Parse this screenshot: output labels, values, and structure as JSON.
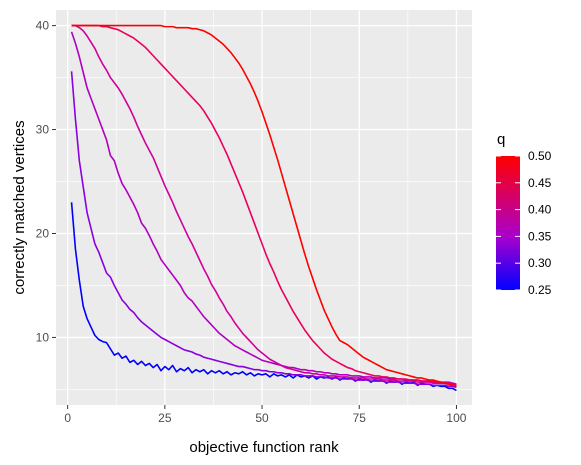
{
  "chart_data": {
    "type": "line",
    "xlabel": "objective function rank",
    "ylabel": "correctly matched vertices",
    "xlim": [
      -3,
      104
    ],
    "ylim": [
      3.5,
      41.5
    ],
    "x_ticks": [
      0,
      25,
      50,
      75,
      100
    ],
    "y_ticks": [
      10,
      20,
      30,
      40
    ],
    "x_minor_ticks": [
      12.5,
      37.5,
      62.5,
      87.5
    ],
    "y_minor_ticks": [
      5,
      15,
      25,
      35
    ],
    "grid": true,
    "background": "#EBEBEB",
    "legend": {
      "title": "q",
      "position": "right",
      "labels": [
        "0.50",
        "0.45",
        "0.40",
        "0.35",
        "0.30",
        "0.25"
      ],
      "values": [
        0.5,
        0.45,
        0.4,
        0.35,
        0.3,
        0.25
      ],
      "range": [
        0.25,
        0.5
      ],
      "color_low": "#0000FF",
      "color_mid": "#AA00CC",
      "color_high": "#FF0000"
    },
    "series": [
      {
        "q": 0.25,
        "color": "#0000FF",
        "values": [
          23,
          18.5,
          15.5,
          13,
          11.8,
          11,
          10.2,
          9.8,
          9.6,
          9.5,
          8.9,
          8.3,
          8.5,
          8,
          8.2,
          7.6,
          7.8,
          7.4,
          7.7,
          7.3,
          7.5,
          7.1,
          7.4,
          6.8,
          7.2,
          6.9,
          7.3,
          6.7,
          7,
          6.8,
          7.1,
          6.6,
          6.9,
          6.7,
          6.9,
          6.5,
          6.8,
          6.6,
          6.8,
          6.5,
          6.7,
          6.4,
          6.6,
          6.5,
          6.7,
          6.4,
          6.6,
          6.3,
          6.5,
          6.4,
          6.5,
          6.2,
          6.5,
          6.3,
          6.4,
          6.2,
          6.4,
          6.1,
          6.4,
          6.2,
          6.3,
          6.1,
          6.3,
          6,
          6.2,
          6.1,
          6.2,
          6,
          6.2,
          5.9,
          6.1,
          6,
          6.1,
          5.8,
          6,
          5.9,
          6,
          5.7,
          5.9,
          5.8,
          5.9,
          5.6,
          5.8,
          5.7,
          5.8,
          5.5,
          5.7,
          5.6,
          5.7,
          5.4,
          5.6,
          5.5,
          5.5,
          5.3,
          5.4,
          5.3,
          5.3,
          5.1,
          5.1,
          4.9
        ]
      },
      {
        "q": 0.3,
        "color": "#8A00E0",
        "values": [
          35.6,
          31,
          27,
          24.5,
          22,
          20.5,
          19,
          18.2,
          17.2,
          16.2,
          15.8,
          15,
          14.3,
          13.6,
          13.2,
          12.7,
          12.4,
          11.9,
          11.5,
          11.2,
          10.9,
          10.6,
          10.3,
          10,
          9.8,
          9.6,
          9.4,
          9.2,
          9,
          8.8,
          8.7,
          8.6,
          8.4,
          8.3,
          8.1,
          8,
          7.9,
          7.8,
          7.7,
          7.6,
          7.5,
          7.4,
          7.3,
          7.2,
          7.2,
          7.1,
          7,
          6.9,
          6.9,
          6.8,
          6.8,
          6.7,
          6.7,
          6.6,
          6.6,
          6.5,
          6.5,
          6.4,
          6.4,
          6.4,
          6.3,
          6.3,
          6.3,
          6.2,
          6.2,
          6.2,
          6.1,
          6.1,
          6.1,
          6,
          6,
          6,
          6,
          5.9,
          5.9,
          5.9,
          5.9,
          5.8,
          5.8,
          5.8,
          5.8,
          5.7,
          5.7,
          5.7,
          5.7,
          5.6,
          5.6,
          5.6,
          5.6,
          5.5,
          5.5,
          5.5,
          5.5,
          5.4,
          5.4,
          5.4,
          5.4,
          5.3,
          5.3,
          5.2
        ]
      },
      {
        "q": 0.35,
        "color": "#B000C0",
        "values": [
          39.4,
          38.3,
          37,
          35.5,
          34,
          33,
          32,
          31,
          30,
          29,
          27.5,
          27,
          25.8,
          24.8,
          24.2,
          23.5,
          22.8,
          22,
          21,
          20.5,
          19.8,
          19,
          18.3,
          17.5,
          17,
          16.5,
          16,
          15.5,
          15,
          14.3,
          13.8,
          13.5,
          13,
          12.5,
          12,
          11.6,
          11.2,
          10.8,
          10.4,
          10.1,
          9.8,
          9.5,
          9.2,
          9,
          8.8,
          8.6,
          8.4,
          8.2,
          8,
          7.8,
          7.7,
          7.6,
          7.5,
          7.4,
          7.3,
          7.2,
          7.1,
          7.1,
          7,
          6.9,
          6.9,
          6.8,
          6.8,
          6.7,
          6.7,
          6.6,
          6.6,
          6.5,
          6.5,
          6.4,
          6.4,
          6.4,
          6.3,
          6.3,
          6.3,
          6.2,
          6.2,
          6.2,
          6.1,
          6.1,
          6.1,
          6.1,
          6,
          6,
          6,
          6,
          5.9,
          5.9,
          5.9,
          5.9,
          5.8,
          5.8,
          5.8,
          5.8,
          5.7,
          5.7,
          5.7,
          5.7,
          5.6,
          5.5
        ]
      },
      {
        "q": 0.4,
        "color": "#D0009A",
        "values": [
          40,
          40,
          39.8,
          39.5,
          39,
          38.4,
          37.8,
          37,
          36.3,
          35.7,
          35,
          34.5,
          34,
          33.4,
          32.7,
          32,
          31.2,
          30.3,
          29.5,
          28.7,
          28,
          27.3,
          26.4,
          25.5,
          24.6,
          23.8,
          23,
          22.1,
          21.3,
          20.5,
          19.7,
          19,
          18.2,
          17.4,
          16.6,
          15.9,
          15.1,
          14.5,
          13.8,
          13.2,
          12.5,
          12,
          11.4,
          10.9,
          10.4,
          10,
          9.6,
          9.2,
          8.8,
          8.5,
          8.2,
          7.9,
          7.7,
          7.5,
          7.3,
          7.1,
          7,
          6.9,
          6.8,
          6.7,
          6.6,
          6.6,
          6.5,
          6.5,
          6.4,
          6.4,
          6.3,
          6.3,
          6.3,
          6.2,
          6.2,
          6.2,
          6.1,
          6.1,
          6.1,
          6.1,
          6,
          6,
          6,
          6,
          5.9,
          5.9,
          5.9,
          5.9,
          5.8,
          5.8,
          5.8,
          5.8,
          5.8,
          5.7,
          5.7,
          5.7,
          5.7,
          5.6,
          5.6,
          5.6,
          5.6,
          5.5,
          5.5,
          5.4
        ]
      },
      {
        "q": 0.45,
        "color": "#EA0060",
        "values": [
          40,
          40,
          40,
          40,
          40,
          40,
          40,
          40,
          39.9,
          39.9,
          39.8,
          39.7,
          39.6,
          39.4,
          39.2,
          39,
          38.8,
          38.5,
          38.2,
          37.9,
          37.5,
          37.1,
          36.7,
          36.3,
          35.9,
          35.5,
          35.1,
          34.7,
          34.3,
          33.9,
          33.5,
          33.1,
          32.7,
          32.3,
          31.8,
          31.2,
          30.6,
          29.9,
          29.2,
          28.4,
          27.6,
          26.7,
          25.8,
          24.9,
          24,
          23,
          22,
          21,
          20,
          19,
          18,
          17.1,
          16.3,
          15.4,
          14.6,
          13.9,
          13.2,
          12.5,
          11.9,
          11.3,
          10.7,
          10.2,
          9.7,
          9.3,
          8.9,
          8.5,
          8.2,
          7.9,
          7.7,
          7.5,
          7.3,
          7.1,
          7,
          6.8,
          6.7,
          6.6,
          6.5,
          6.4,
          6.3,
          6.3,
          6.2,
          6.2,
          6.1,
          6.1,
          6,
          6,
          6,
          5.9,
          5.9,
          5.9,
          5.8,
          5.8,
          5.8,
          5.7,
          5.7,
          5.7,
          5.6,
          5.6,
          5.5,
          5.5
        ]
      },
      {
        "q": 0.5,
        "color": "#FF0000",
        "values": [
          40,
          40,
          40,
          40,
          40,
          40,
          40,
          40,
          40,
          40,
          40,
          40,
          40,
          40,
          40,
          40,
          40,
          40,
          40,
          40,
          40,
          40,
          40,
          40,
          39.9,
          39.9,
          39.9,
          39.8,
          39.8,
          39.8,
          39.8,
          39.7,
          39.7,
          39.6,
          39.5,
          39.3,
          39.1,
          38.8,
          38.5,
          38.2,
          37.8,
          37.4,
          36.9,
          36.4,
          35.8,
          35.1,
          34.4,
          33.6,
          32.7,
          31.7,
          30.6,
          29.5,
          28.3,
          27.1,
          25.8,
          24.5,
          23.2,
          21.9,
          20.6,
          19.3,
          18,
          16.8,
          15.7,
          14.6,
          13.6,
          12.6,
          11.8,
          11,
          10.3,
          9.7,
          9.5,
          9.3,
          9,
          8.7,
          8.4,
          8.1,
          7.9,
          7.7,
          7.5,
          7.3,
          7.1,
          6.9,
          6.8,
          6.7,
          6.6,
          6.5,
          6.4,
          6.3,
          6.2,
          6.1,
          6.1,
          6,
          5.9,
          5.9,
          5.8,
          5.7,
          5.6,
          5.5,
          5.4,
          5.3
        ]
      }
    ]
  }
}
